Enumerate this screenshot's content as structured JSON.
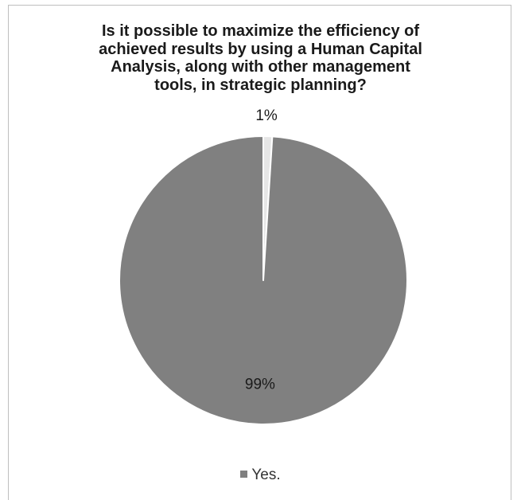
{
  "chart_data": {
    "type": "pie",
    "title_lines": [
      "Is it possible to maximize the efficiency of",
      "achieved results by using a Human Capital",
      "Analysis, along with other management",
      "tools, in strategic planning?"
    ],
    "slices": [
      {
        "name": "Yes.",
        "value": 99,
        "label": "99%",
        "color": "#808080",
        "in_legend": true
      },
      {
        "name": "",
        "value": 1,
        "label": "1%",
        "color": "#e6e6e6",
        "in_legend": false
      }
    ],
    "legend": {
      "position": "bottom",
      "entries": [
        "Yes."
      ]
    },
    "colors": {
      "slice_border": "#ffffff",
      "frame": "#bfbfbf",
      "text": "#1a1a1a"
    }
  }
}
